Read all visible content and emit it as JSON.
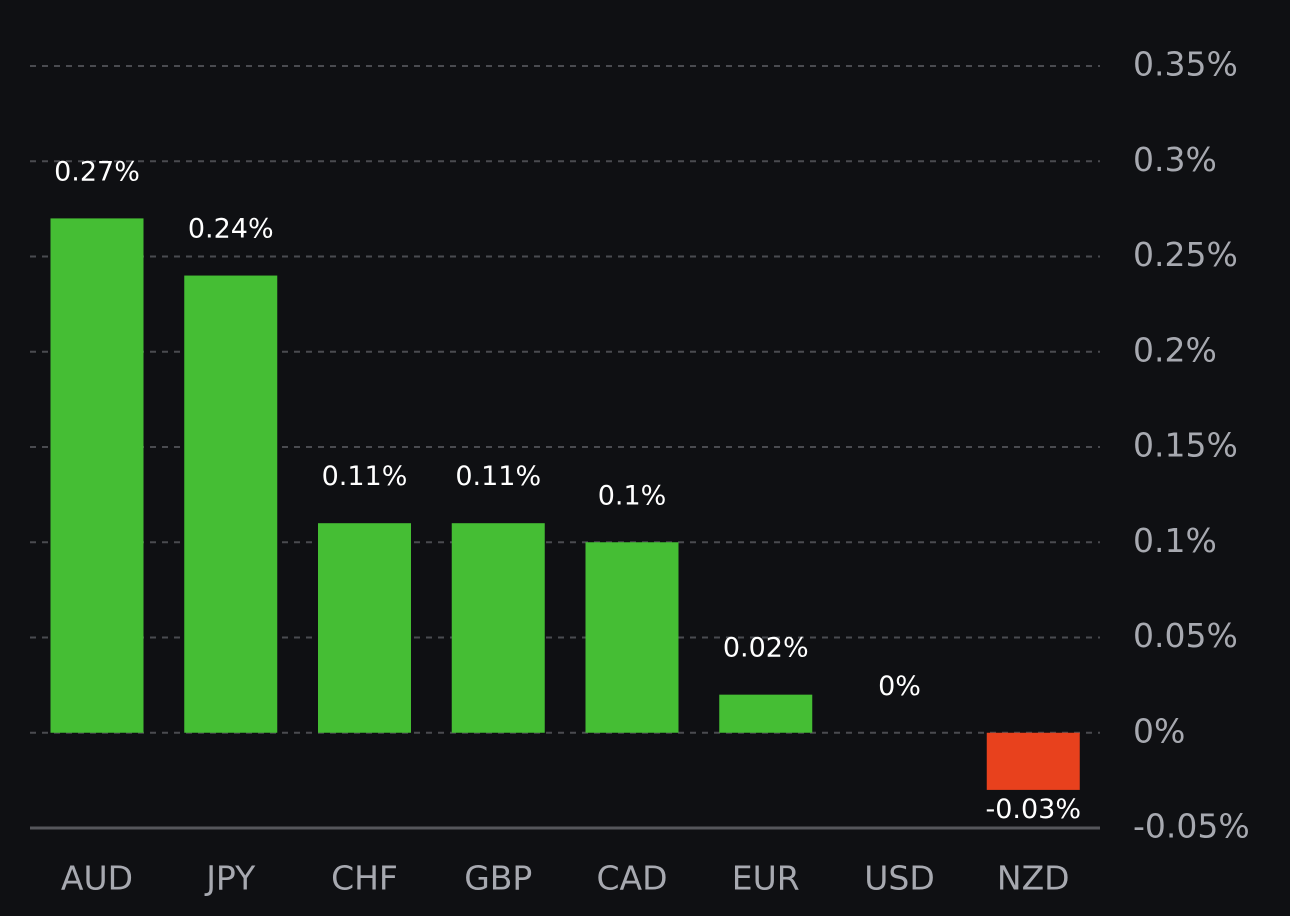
{
  "chart_data": {
    "type": "bar",
    "categories": [
      "AUD",
      "JPY",
      "CHF",
      "GBP",
      "CAD",
      "EUR",
      "USD",
      "NZD"
    ],
    "values": [
      0.27,
      0.24,
      0.11,
      0.11,
      0.1,
      0.02,
      0,
      -0.03
    ],
    "data_labels": [
      "0.27%",
      "0.24%",
      "0.11%",
      "0.11%",
      "0.1%",
      "0.02%",
      "0%",
      "-0.03%"
    ],
    "ylim": [
      -0.05,
      0.35
    ],
    "yticks": [
      0.35,
      0.3,
      0.25,
      0.2,
      0.15,
      0.1,
      0.05,
      0,
      -0.05
    ],
    "ytick_labels": [
      "0.35%",
      "0.3%",
      "0.25%",
      "0.2%",
      "0.15%",
      "0.1%",
      "0.05%",
      "0%",
      "-0.05%"
    ],
    "grid": true,
    "y_axis_position": "right",
    "colors": {
      "positive": "#45be34",
      "negative": "#e8411d",
      "background": "#0f1013"
    }
  }
}
